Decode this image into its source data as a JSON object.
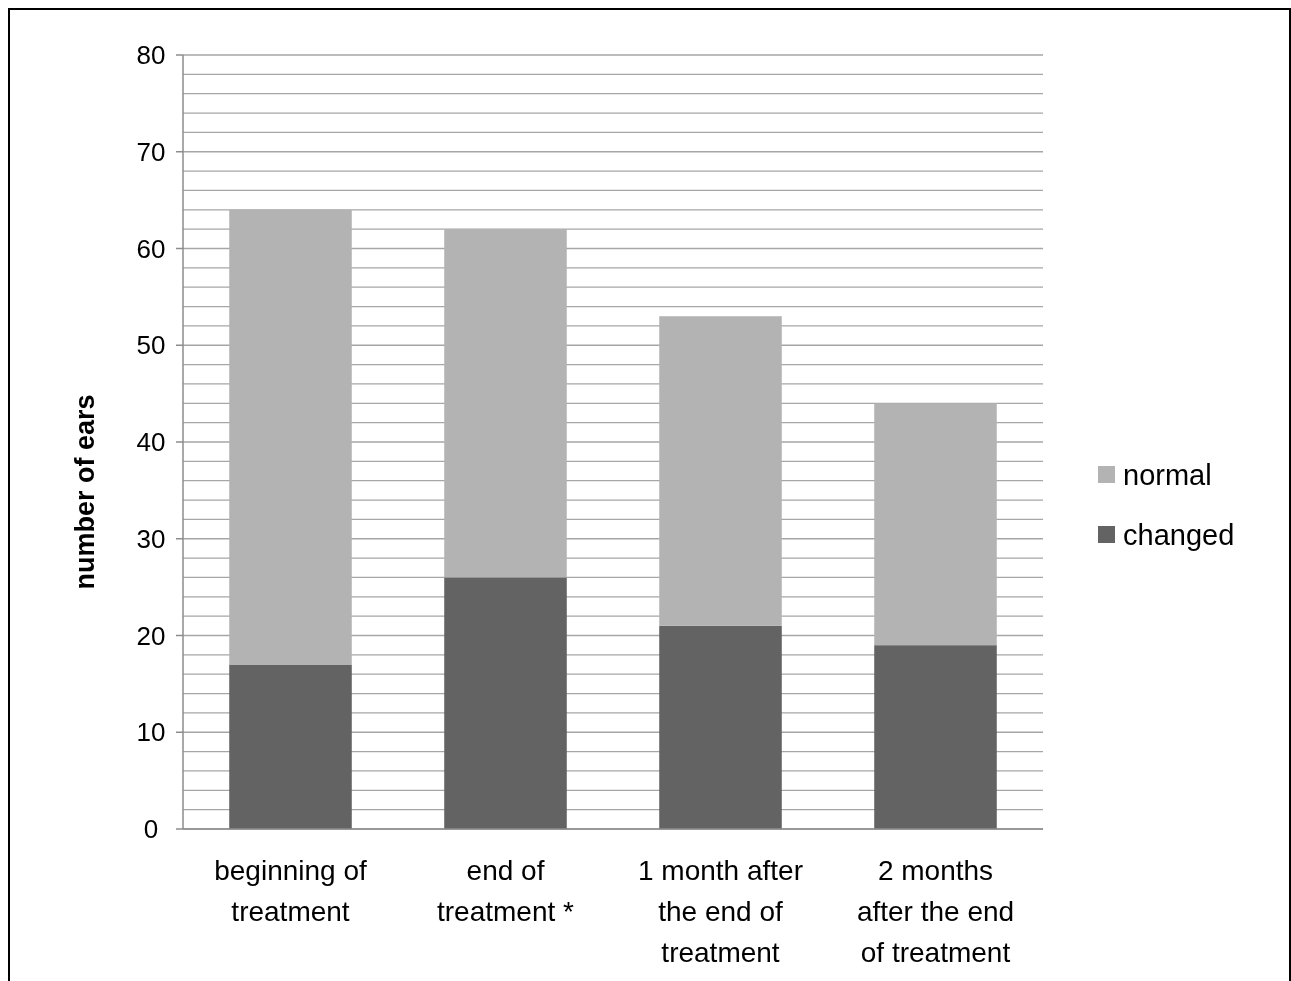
{
  "chart_data": {
    "type": "bar",
    "stacked": true,
    "ylabel": "number of ears",
    "categories": [
      "beginning of treatment",
      "end of treatment *",
      "1 month after the end of treatment",
      "2 months after the end of treatment"
    ],
    "series": [
      {
        "name": "changed",
        "color": "#636363",
        "values": [
          17,
          26,
          21,
          19
        ]
      },
      {
        "name": "normal",
        "color": "#b3b3b3",
        "values": [
          47,
          36,
          32,
          25
        ]
      }
    ],
    "ylim": [
      0,
      80
    ],
    "yticks": [
      0,
      {
        "value": 2,
        "label": null
      },
      {
        "value": 4,
        "label": null
      },
      {
        "value": 6,
        "label": null
      },
      {
        "value": 8,
        "label": null
      },
      10,
      {
        "value": 12,
        "label": null
      },
      {
        "value": 14,
        "label": null
      },
      {
        "value": 16,
        "label": null
      },
      {
        "value": 18,
        "label": null
      },
      20,
      {
        "value": 22,
        "label": null
      },
      {
        "value": 24,
        "label": null
      },
      {
        "value": 26,
        "label": null
      },
      {
        "value": 28,
        "label": null
      },
      30,
      {
        "value": 32,
        "label": null
      },
      {
        "value": 34,
        "label": null
      },
      {
        "value": 36,
        "label": null
      },
      {
        "value": 38,
        "label": null
      },
      40,
      {
        "value": 42,
        "label": null
      },
      {
        "value": 44,
        "label": null
      },
      {
        "value": 46,
        "label": null
      },
      {
        "value": 48,
        "label": null
      },
      50,
      {
        "value": 52,
        "label": null
      },
      {
        "value": 54,
        "label": null
      },
      {
        "value": 56,
        "label": null
      },
      {
        "value": 58,
        "label": null
      },
      60,
      {
        "value": 62,
        "label": null
      },
      {
        "value": 64,
        "label": null
      },
      {
        "value": 66,
        "label": null
      },
      {
        "value": 68,
        "label": null
      },
      70,
      {
        "value": 72,
        "label": null
      },
      {
        "value": 74,
        "label": null
      },
      {
        "value": 76,
        "label": null
      },
      {
        "value": 78,
        "label": null
      },
      80
    ],
    "grid": true,
    "legend": "right"
  }
}
